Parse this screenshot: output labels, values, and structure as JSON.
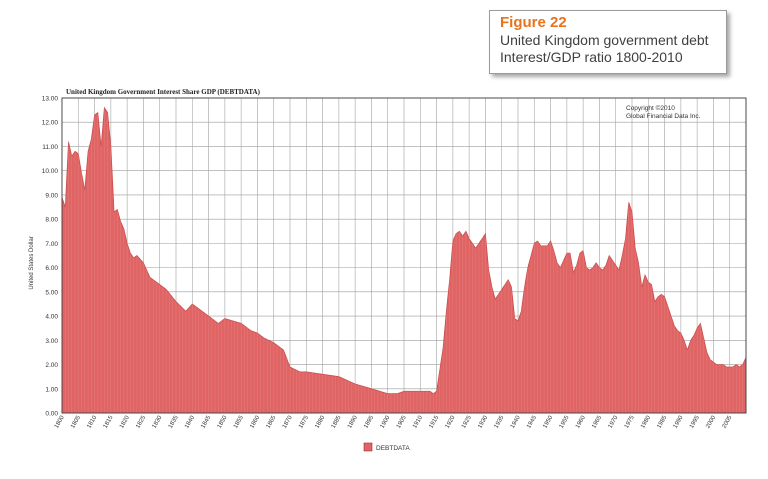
{
  "figure": {
    "label": "Figure 22",
    "caption_line1": "United Kingdom government debt",
    "caption_line2": "Interest/GDP ratio 1800-2010"
  },
  "chart_data": {
    "type": "area",
    "title": "United Kingdom  Government Interest Share GDP (DEBTDATA)",
    "ylabel": "United States Dollar",
    "xlabel": "",
    "copyright_line1": "Copyright ©2010",
    "copyright_line2": "Global Financial Data Inc.",
    "ylim": [
      0,
      13
    ],
    "xlim": [
      1800,
      2010
    ],
    "grid": true,
    "legend": "bottom-center",
    "series_color": "#e06464",
    "yticks": [
      "0.00",
      "1.00",
      "2.00",
      "3.00",
      "4.00",
      "5.00",
      "6.00",
      "7.00",
      "8.00",
      "9.00",
      "10.00",
      "11.00",
      "12.00",
      "13.00"
    ],
    "xticks": [
      "1800",
      "1805",
      "1810",
      "1815",
      "1820",
      "1825",
      "1830",
      "1835",
      "1840",
      "1845",
      "1850",
      "1855",
      "1860",
      "1865",
      "1870",
      "1875",
      "1880",
      "1885",
      "1890",
      "1895",
      "1900",
      "1905",
      "1910",
      "1915",
      "1920",
      "1925",
      "1930",
      "1935",
      "1940",
      "1945",
      "1950",
      "1955",
      "1960",
      "1965",
      "1970",
      "1975",
      "1980",
      "1985",
      "1990",
      "1995",
      "2000",
      "2005"
    ],
    "series": [
      {
        "name": "DEBTDATA",
        "x": [
          1800,
          1801,
          1802,
          1803,
          1804,
          1805,
          1806,
          1807,
          1808,
          1809,
          1810,
          1811,
          1812,
          1813,
          1814,
          1815,
          1816,
          1817,
          1818,
          1819,
          1820,
          1821,
          1822,
          1823,
          1825,
          1827,
          1830,
          1832,
          1835,
          1838,
          1840,
          1842,
          1845,
          1848,
          1850,
          1855,
          1858,
          1860,
          1862,
          1865,
          1868,
          1870,
          1873,
          1875,
          1880,
          1885,
          1890,
          1895,
          1900,
          1903,
          1905,
          1910,
          1913,
          1914,
          1915,
          1916,
          1917,
          1918,
          1919,
          1920,
          1921,
          1922,
          1923,
          1924,
          1925,
          1926,
          1927,
          1928,
          1929,
          1930,
          1931,
          1932,
          1933,
          1934,
          1935,
          1936,
          1937,
          1938,
          1939,
          1940,
          1941,
          1942,
          1943,
          1944,
          1945,
          1946,
          1947,
          1948,
          1949,
          1950,
          1951,
          1952,
          1953,
          1954,
          1955,
          1956,
          1957,
          1958,
          1959,
          1960,
          1961,
          1962,
          1963,
          1964,
          1965,
          1966,
          1967,
          1968,
          1969,
          1970,
          1971,
          1972,
          1973,
          1974,
          1975,
          1976,
          1977,
          1978,
          1979,
          1980,
          1981,
          1982,
          1983,
          1984,
          1985,
          1986,
          1987,
          1988,
          1989,
          1990,
          1991,
          1992,
          1993,
          1994,
          1995,
          1996,
          1997,
          1998,
          1999,
          2000,
          2001,
          2002,
          2003,
          2004,
          2005,
          2006,
          2007,
          2008,
          2009,
          2010
        ],
        "y": [
          8.9,
          8.5,
          11.2,
          10.6,
          10.8,
          10.7,
          9.9,
          9.2,
          10.8,
          11.3,
          12.3,
          12.4,
          11.0,
          12.6,
          12.4,
          11.0,
          8.3,
          8.4,
          7.9,
          7.6,
          7.0,
          6.6,
          6.4,
          6.5,
          6.2,
          5.6,
          5.3,
          5.1,
          4.6,
          4.2,
          4.5,
          4.3,
          4.0,
          3.7,
          3.9,
          3.7,
          3.4,
          3.3,
          3.1,
          2.9,
          2.6,
          1.9,
          1.7,
          1.7,
          1.6,
          1.5,
          1.2,
          1.0,
          0.8,
          0.8,
          0.9,
          0.9,
          0.9,
          0.8,
          0.9,
          1.8,
          2.7,
          4.2,
          5.5,
          7.1,
          7.4,
          7.5,
          7.3,
          7.5,
          7.2,
          7.0,
          6.8,
          7.0,
          7.2,
          7.4,
          5.9,
          5.2,
          4.7,
          4.9,
          5.1,
          5.3,
          5.5,
          5.2,
          3.9,
          3.8,
          4.2,
          5.2,
          6.0,
          6.5,
          7.0,
          7.1,
          6.9,
          6.9,
          6.9,
          7.1,
          6.7,
          6.2,
          6.0,
          6.3,
          6.6,
          6.6,
          5.8,
          6.1,
          6.6,
          6.7,
          6.0,
          5.9,
          6.0,
          6.2,
          6.0,
          5.9,
          6.1,
          6.5,
          6.3,
          6.1,
          5.9,
          6.5,
          7.2,
          8.7,
          8.3,
          6.8,
          6.2,
          5.2,
          5.7,
          5.4,
          5.3,
          4.6,
          4.8,
          4.9,
          4.8,
          4.4,
          4.0,
          3.6,
          3.4,
          3.3,
          3.0,
          2.6,
          3.0,
          3.2,
          3.5,
          3.7,
          3.1,
          2.5,
          2.2,
          2.1,
          2.0,
          2.0,
          2.0,
          1.9,
          1.9,
          1.9,
          2.0,
          1.9,
          2.0,
          2.3
        ]
      }
    ]
  }
}
